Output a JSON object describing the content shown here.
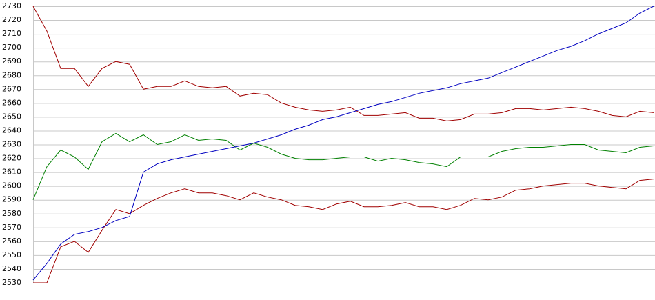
{
  "chart_data": {
    "type": "line",
    "categories": [
      null,
      null,
      null,
      null,
      null,
      null,
      null,
      null,
      null,
      null,
      null,
      null,
      null,
      null,
      null,
      null,
      null,
      null,
      null,
      null,
      null,
      null,
      null,
      null,
      null,
      null,
      null,
      null,
      null,
      null,
      null,
      null,
      null,
      null,
      null,
      null,
      null,
      null,
      null,
      null,
      null,
      null,
      null,
      null,
      null,
      null
    ],
    "series": [
      {
        "color": "#a00000",
        "values": [
          2730,
          2712,
          2685,
          2685,
          2672,
          2685,
          2690,
          2688,
          2670,
          2672,
          2672,
          2676,
          2672,
          2671,
          2672,
          2665,
          2667,
          2666,
          2660,
          2657,
          2655,
          2654,
          2655,
          2657,
          2651,
          2651,
          2652,
          2653,
          2649,
          2649,
          2647,
          2648,
          2652,
          2652,
          2653,
          2656,
          2656,
          2655,
          2656,
          2657,
          2656,
          2654,
          2651,
          2650,
          2654,
          2653
        ]
      },
      {
        "color": "#008000",
        "values": [
          2590,
          2614,
          2626,
          2621,
          2612,
          2632,
          2638,
          2632,
          2637,
          2630,
          2632,
          2637,
          2633,
          2634,
          2633,
          2626,
          2631,
          2628,
          2623,
          2620,
          2619,
          2619,
          2620,
          2621,
          2621,
          2618,
          2620,
          2619,
          2617,
          2616,
          2614,
          2621,
          2621,
          2621,
          2625,
          2627,
          2628,
          2628,
          2629,
          2630,
          2630,
          2626,
          2625,
          2624,
          2628,
          2629
        ]
      },
      {
        "color": "#a00000",
        "values": [
          2530,
          2530,
          2556,
          2560,
          2552,
          2568,
          2583,
          2580,
          2586,
          2591,
          2595,
          2598,
          2595,
          2595,
          2593,
          2590,
          2595,
          2592,
          2590,
          2586,
          2585,
          2583,
          2587,
          2589,
          2585,
          2585,
          2586,
          2588,
          2585,
          2585,
          2583,
          2586,
          2591,
          2590,
          2592,
          2597,
          2598,
          2600,
          2601,
          2602,
          2602,
          2600,
          2599,
          2598,
          2604,
          2605
        ]
      },
      {
        "color": "#0000c0",
        "values": [
          2532,
          2544,
          2558,
          2565,
          2567,
          2570,
          2575,
          2578,
          2610,
          2616,
          2619,
          2621,
          2623,
          2625,
          2627,
          2629,
          2631,
          2634,
          2637,
          2641,
          2644,
          2648,
          2650,
          2653,
          2656,
          2659,
          2661,
          2664,
          2667,
          2669,
          2671,
          2674,
          2676,
          2678,
          2682,
          2686,
          2690,
          2694,
          2698,
          2701,
          2705,
          2710,
          2714,
          2718,
          2725,
          2730
        ]
      }
    ],
    "ylim": [
      2530,
      2730
    ],
    "yticks": [
      2530,
      2540,
      2550,
      2560,
      2570,
      2580,
      2590,
      2600,
      2610,
      2620,
      2630,
      2640,
      2650,
      2660,
      2670,
      2680,
      2690,
      2700,
      2710,
      2720,
      2730
    ],
    "grid": true
  }
}
